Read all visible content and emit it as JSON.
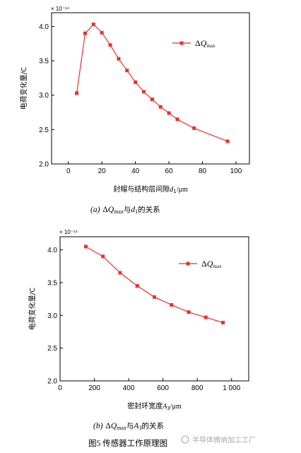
{
  "chart_data": [
    {
      "type": "line",
      "sci_exponent_label": "× 10⁻¹⁴",
      "ylabel": "电荷变化量/C",
      "xlabel_prefix": "封帽与结构层间隙",
      "xlabel_var": "d",
      "xlabel_sub": "1",
      "xlabel_unit": "/μm",
      "xlim": [
        -10,
        108
      ],
      "ylim": [
        2.0,
        4.2
      ],
      "xticks": [
        "0",
        "20",
        "40",
        "60",
        "80",
        "100"
      ],
      "xtick_values": [
        0,
        20,
        40,
        60,
        80,
        100
      ],
      "yticks": [
        "2.0",
        "2.5",
        "3.0",
        "3.5",
        "4.0"
      ],
      "ytick_values": [
        2.0,
        2.5,
        3.0,
        3.5,
        4.0
      ],
      "grid": false,
      "legend_position": "top-right",
      "series": [
        {
          "name_prefix": "Δ",
          "name_var": "Q",
          "name_sub": "max",
          "color": "#e8322e",
          "marker": "square",
          "x": [
            5,
            10,
            15,
            20,
            25,
            30,
            35,
            40,
            45,
            50,
            55,
            60,
            65,
            75,
            95
          ],
          "y": [
            3.03,
            3.9,
            4.03,
            3.91,
            3.73,
            3.53,
            3.36,
            3.19,
            3.05,
            2.94,
            2.83,
            2.74,
            2.65,
            2.52,
            2.33
          ]
        }
      ],
      "caption": {
        "label": "(a)",
        "prefix": "Δ",
        "var": "Q",
        "sub": "max",
        "mid": "与",
        "var2": "d",
        "sub2": "1",
        "suffix": "的关系"
      }
    },
    {
      "type": "line",
      "sci_exponent_label": "× 10⁻¹⁴",
      "ylabel": "电荷变化量/C",
      "xlabel_prefix": "密封环宽度",
      "xlabel_var": "A",
      "xlabel_sub": "3",
      "xlabel_unit": "/μm",
      "xlim": [
        0,
        1100
      ],
      "ylim": [
        2.0,
        4.2
      ],
      "xticks": [
        "0",
        "200",
        "400",
        "600",
        "800",
        "1 000"
      ],
      "xtick_values": [
        0,
        200,
        400,
        600,
        800,
        1000
      ],
      "yticks": [
        "2.0",
        "2.5",
        "3.0",
        "3.5",
        "4.0"
      ],
      "ytick_values": [
        2.0,
        2.5,
        3.0,
        3.5,
        4.0
      ],
      "grid": false,
      "legend_position": "top-right",
      "series": [
        {
          "name_prefix": "Δ",
          "name_var": "Q",
          "name_sub": "max",
          "color": "#e8322e",
          "marker": "square",
          "x": [
            150,
            250,
            350,
            450,
            550,
            650,
            750,
            850,
            950
          ],
          "y": [
            4.05,
            3.9,
            3.65,
            3.45,
            3.28,
            3.16,
            3.05,
            2.97,
            2.89
          ]
        }
      ],
      "caption": {
        "label": "(b)",
        "prefix": "Δ",
        "var": "Q",
        "sub": "max",
        "mid": "与",
        "var2": "A",
        "sub2": "3",
        "suffix": "的关系"
      }
    }
  ],
  "figure_caption": "图5   传感器工作原理图",
  "watermark": "半导体微纳加工工厂"
}
